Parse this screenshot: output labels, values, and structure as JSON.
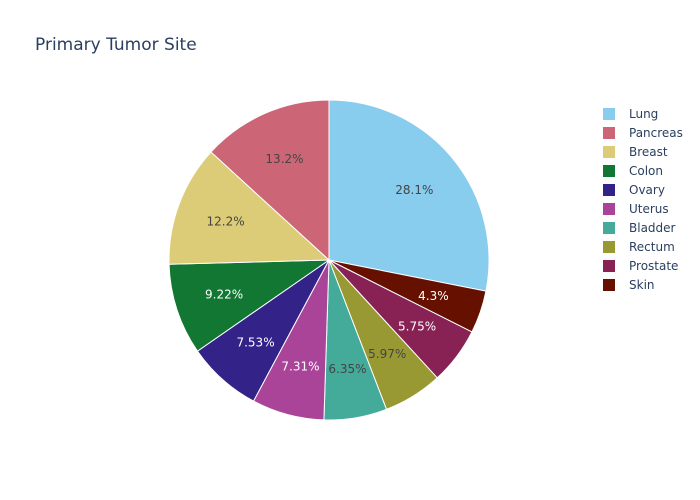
{
  "chart_data": {
    "type": "pie",
    "title": "Primary Tumor Site",
    "legend_position": "right",
    "slices": [
      {
        "label": "Lung",
        "percent": 28.1,
        "percent_label": "28.1%",
        "color": "#88CCEE",
        "text_color": "#444444"
      },
      {
        "label": "Skin",
        "percent": 4.3,
        "percent_label": "4.3%",
        "color": "#661100",
        "text_color": "#ffffff"
      },
      {
        "label": "Prostate",
        "percent": 5.75,
        "percent_label": "5.75%",
        "color": "#882255",
        "text_color": "#ffffff"
      },
      {
        "label": "Rectum",
        "percent": 5.97,
        "percent_label": "5.97%",
        "color": "#999933",
        "text_color": "#444444"
      },
      {
        "label": "Bladder",
        "percent": 6.35,
        "percent_label": "6.35%",
        "color": "#44AA99",
        "text_color": "#444444"
      },
      {
        "label": "Uterus",
        "percent": 7.31,
        "percent_label": "7.31%",
        "color": "#AA4499",
        "text_color": "#ffffff"
      },
      {
        "label": "Ovary",
        "percent": 7.53,
        "percent_label": "7.53%",
        "color": "#332288",
        "text_color": "#ffffff"
      },
      {
        "label": "Colon",
        "percent": 9.22,
        "percent_label": "9.22%",
        "color": "#117733",
        "text_color": "#ffffff"
      },
      {
        "label": "Breast",
        "percent": 12.2,
        "percent_label": "12.2%",
        "color": "#DDCC77",
        "text_color": "#444444"
      },
      {
        "label": "Pancreas",
        "percent": 13.2,
        "percent_label": "13.2%",
        "color": "#CC6677",
        "text_color": "#444444"
      }
    ],
    "legend": [
      {
        "label": "Lung",
        "color": "#88CCEE"
      },
      {
        "label": "Pancreas",
        "color": "#CC6677"
      },
      {
        "label": "Breast",
        "color": "#DDCC77"
      },
      {
        "label": "Colon",
        "color": "#117733"
      },
      {
        "label": "Ovary",
        "color": "#332288"
      },
      {
        "label": "Uterus",
        "color": "#AA4499"
      },
      {
        "label": "Bladder",
        "color": "#44AA99"
      },
      {
        "label": "Rectum",
        "color": "#999933"
      },
      {
        "label": "Prostate",
        "color": "#882255"
      },
      {
        "label": "Skin",
        "color": "#661100"
      }
    ]
  }
}
